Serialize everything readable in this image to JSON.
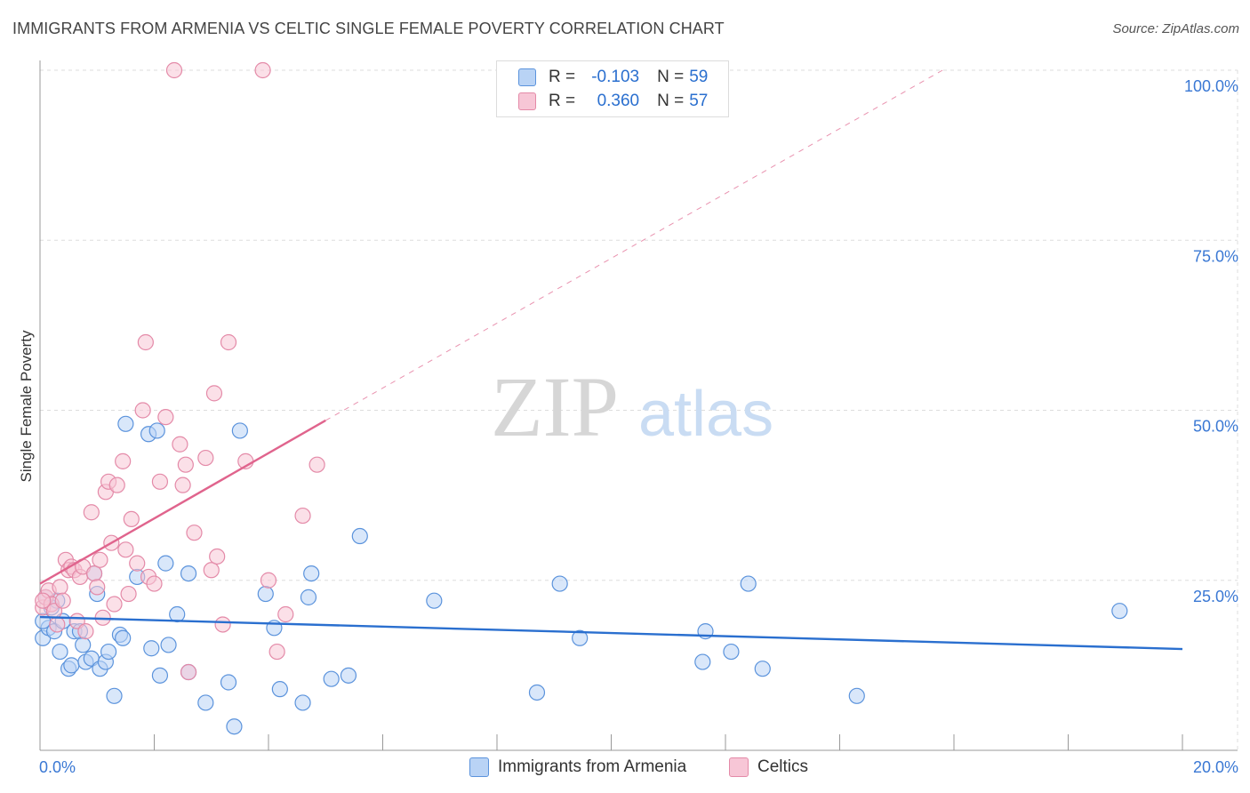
{
  "header": {
    "title": "IMMIGRANTS FROM ARMENIA VS CELTIC SINGLE FEMALE POVERTY CORRELATION CHART",
    "source": "Source: ZipAtlas.com"
  },
  "colors": {
    "blue_fill": "#b9d3f5",
    "blue_stroke": "#5b93dc",
    "blue_line": "#2a6fcf",
    "pink_fill": "#f7c6d6",
    "pink_stroke": "#e48aa8",
    "pink_line": "#e0648d",
    "axis_label": "#3a78d4",
    "grid": "#dddddd"
  },
  "legend": {
    "rows": [
      {
        "r_label": "R =",
        "r_value": "-0.103",
        "n_label": "N =",
        "n_value": "59",
        "series": "blue"
      },
      {
        "r_label": "R =",
        "r_value": "0.360",
        "n_label": "N =",
        "n_value": "57",
        "series": "pink"
      }
    ]
  },
  "bottom_legend": [
    {
      "label": "Immigrants from Armenia",
      "series": "blue"
    },
    {
      "label": "Celtics",
      "series": "pink"
    }
  ],
  "watermark": {
    "zip": "ZIP",
    "atlas": "atlas"
  },
  "chart_data": {
    "type": "scatter",
    "title": "IMMIGRANTS FROM ARMENIA VS CELTIC SINGLE FEMALE POVERTY CORRELATION CHART",
    "xlabel": "",
    "ylabel": "Single Female Poverty",
    "xlim": [
      0,
      20
    ],
    "ylim": [
      0,
      102
    ],
    "x_tick_labels": [
      "0.0%",
      "20.0%"
    ],
    "y_ticks": [
      25,
      50,
      75,
      100
    ],
    "y_tick_labels": [
      "25.0%",
      "50.0%",
      "75.0%",
      "100.0%"
    ],
    "grid": true,
    "series": [
      {
        "name": "Immigrants from Armenia",
        "color": "blue",
        "trend": {
          "x": [
            0,
            20
          ],
          "y": [
            19.6,
            14.9
          ],
          "dashed_extension": false
        },
        "points": [
          [
            0.05,
            16.5
          ],
          [
            0.1,
            22.5
          ],
          [
            0.15,
            18.0
          ],
          [
            0.2,
            21.0
          ],
          [
            0.25,
            17.5
          ],
          [
            0.3,
            22.0
          ],
          [
            0.35,
            14.5
          ],
          [
            0.4,
            19.0
          ],
          [
            0.5,
            12.0
          ],
          [
            0.55,
            12.5
          ],
          [
            0.6,
            17.5
          ],
          [
            0.7,
            17.5
          ],
          [
            0.75,
            15.5
          ],
          [
            0.8,
            13.0
          ],
          [
            0.9,
            13.5
          ],
          [
            0.95,
            26.0
          ],
          [
            1.0,
            23.0
          ],
          [
            1.05,
            12.0
          ],
          [
            1.15,
            13.0
          ],
          [
            1.2,
            14.5
          ],
          [
            1.3,
            8.0
          ],
          [
            1.4,
            17.0
          ],
          [
            1.45,
            16.5
          ],
          [
            1.5,
            48.0
          ],
          [
            1.7,
            25.5
          ],
          [
            1.95,
            15.0
          ],
          [
            1.9,
            46.5
          ],
          [
            2.05,
            47.0
          ],
          [
            2.1,
            11.0
          ],
          [
            2.2,
            27.5
          ],
          [
            2.25,
            15.5
          ],
          [
            2.4,
            20.0
          ],
          [
            2.6,
            26.0
          ],
          [
            2.6,
            11.5
          ],
          [
            2.9,
            7.0
          ],
          [
            3.3,
            10.0
          ],
          [
            3.4,
            3.5
          ],
          [
            3.5,
            47.0
          ],
          [
            3.95,
            23.0
          ],
          [
            4.1,
            18.0
          ],
          [
            4.2,
            9.0
          ],
          [
            4.6,
            7.0
          ],
          [
            4.7,
            22.5
          ],
          [
            4.75,
            26.0
          ],
          [
            5.1,
            10.5
          ],
          [
            5.4,
            11.0
          ],
          [
            5.6,
            31.5
          ],
          [
            6.9,
            22.0
          ],
          [
            8.7,
            8.5
          ],
          [
            9.1,
            24.5
          ],
          [
            9.45,
            16.5
          ],
          [
            11.6,
            13.0
          ],
          [
            11.65,
            17.5
          ],
          [
            12.1,
            14.5
          ],
          [
            12.4,
            24.5
          ],
          [
            12.65,
            12.0
          ],
          [
            14.3,
            8.0
          ],
          [
            18.9,
            20.5
          ],
          [
            0.05,
            19.0
          ]
        ]
      },
      {
        "name": "Celtics",
        "color": "pink",
        "trend": {
          "x": [
            0,
            5.0
          ],
          "y": [
            24.5,
            48.5
          ],
          "dashed_extension": true,
          "dash_to": [
            15.8,
            100
          ]
        },
        "points": [
          [
            0.05,
            21.0
          ],
          [
            0.1,
            22.5
          ],
          [
            0.15,
            23.5
          ],
          [
            0.2,
            21.5
          ],
          [
            0.25,
            20.5
          ],
          [
            0.3,
            18.5
          ],
          [
            0.35,
            24.0
          ],
          [
            0.4,
            22.0
          ],
          [
            0.45,
            28.0
          ],
          [
            0.5,
            26.5
          ],
          [
            0.55,
            27.0
          ],
          [
            0.6,
            26.5
          ],
          [
            0.65,
            19.0
          ],
          [
            0.7,
            25.5
          ],
          [
            0.75,
            27.0
          ],
          [
            0.8,
            17.5
          ],
          [
            0.9,
            35.0
          ],
          [
            0.95,
            26.0
          ],
          [
            1.0,
            24.0
          ],
          [
            1.05,
            28.0
          ],
          [
            1.1,
            19.5
          ],
          [
            1.15,
            38.0
          ],
          [
            1.2,
            39.5
          ],
          [
            1.25,
            30.5
          ],
          [
            1.3,
            21.5
          ],
          [
            1.35,
            39.0
          ],
          [
            1.45,
            42.5
          ],
          [
            1.5,
            29.5
          ],
          [
            1.55,
            23.0
          ],
          [
            1.6,
            34.0
          ],
          [
            1.7,
            27.5
          ],
          [
            1.8,
            50.0
          ],
          [
            1.85,
            60.0
          ],
          [
            1.9,
            25.5
          ],
          [
            2.0,
            24.5
          ],
          [
            2.1,
            39.5
          ],
          [
            2.2,
            49.0
          ],
          [
            2.35,
            100.0
          ],
          [
            2.45,
            45.0
          ],
          [
            2.5,
            39.0
          ],
          [
            2.55,
            42.0
          ],
          [
            2.6,
            11.5
          ],
          [
            2.7,
            32.0
          ],
          [
            2.9,
            43.0
          ],
          [
            3.0,
            26.5
          ],
          [
            3.05,
            52.5
          ],
          [
            3.1,
            28.5
          ],
          [
            3.2,
            18.5
          ],
          [
            3.3,
            60.0
          ],
          [
            3.6,
            42.5
          ],
          [
            3.9,
            100.0
          ],
          [
            4.0,
            25.0
          ],
          [
            4.15,
            14.5
          ],
          [
            4.3,
            20.0
          ],
          [
            4.6,
            34.5
          ],
          [
            4.85,
            42.0
          ],
          [
            0.05,
            22.0
          ]
        ]
      }
    ]
  }
}
